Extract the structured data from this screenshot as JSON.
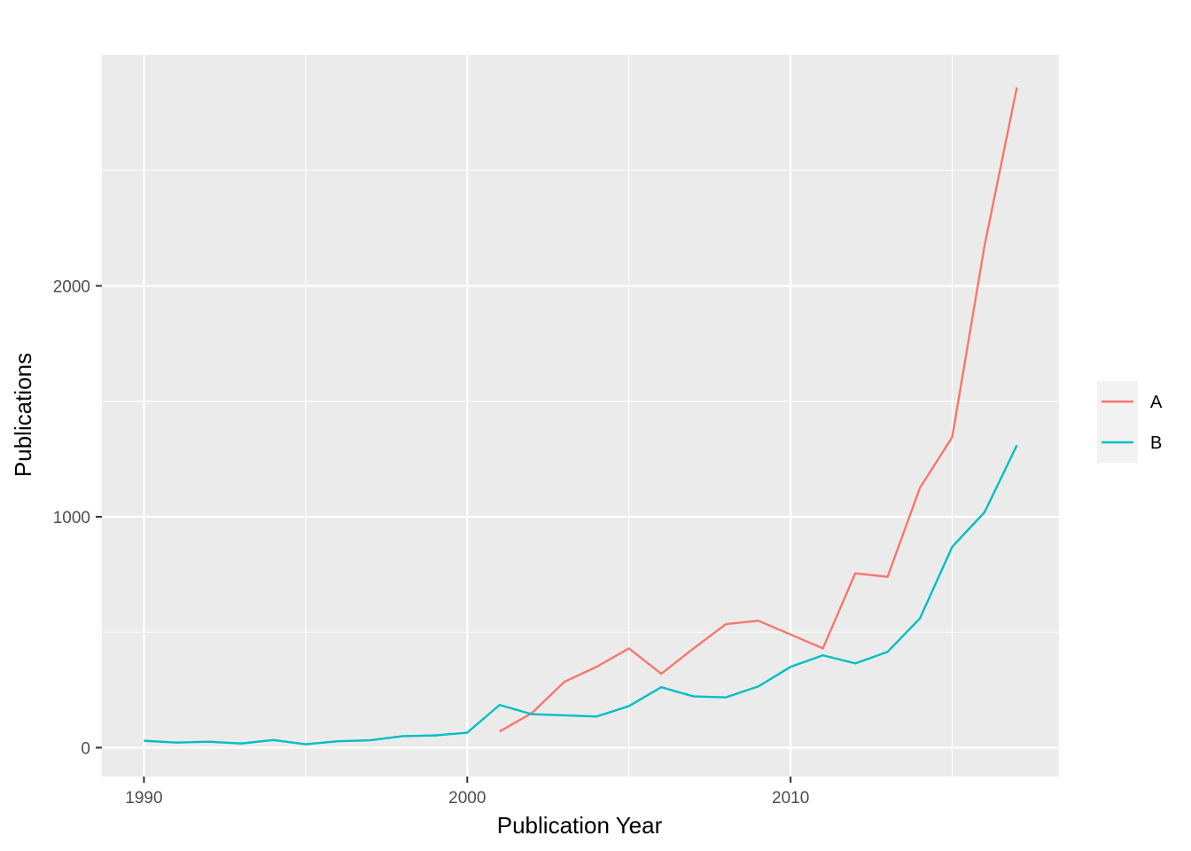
{
  "chart_data": {
    "type": "line",
    "xlabel": "Publication Year",
    "ylabel": "Publications",
    "xlim": [
      1988.7,
      2018.3
    ],
    "ylim": [
      -125,
      3000
    ],
    "x_ticks": [
      1990,
      2000,
      2010
    ],
    "y_ticks": [
      0,
      1000,
      2000
    ],
    "x_tick_labels": [
      "1990",
      "2000",
      "2010"
    ],
    "y_tick_labels": [
      "0",
      "1000",
      "2000"
    ],
    "grid": true,
    "legend_position": "right",
    "series": [
      {
        "name": "A",
        "color": "#F8766D",
        "x": [
          2001,
          2002,
          2003,
          2004,
          2005,
          2006,
          2007,
          2008,
          2009,
          2010,
          2011,
          2012,
          2013,
          2014,
          2015,
          2016,
          2017
        ],
        "values": [
          70,
          150,
          285,
          350,
          430,
          320,
          430,
          535,
          550,
          490,
          430,
          755,
          740,
          1125,
          1345,
          2175,
          2860
        ]
      },
      {
        "name": "B",
        "color": "#00BFC4",
        "x": [
          1990,
          1991,
          1992,
          1993,
          1994,
          1995,
          1996,
          1997,
          1998,
          1999,
          2000,
          2001,
          2002,
          2003,
          2004,
          2005,
          2006,
          2007,
          2008,
          2009,
          2010,
          2011,
          2012,
          2013,
          2014,
          2015,
          2016,
          2017
        ],
        "values": [
          30,
          22,
          26,
          18,
          33,
          15,
          28,
          32,
          50,
          53,
          65,
          185,
          145,
          140,
          135,
          180,
          262,
          222,
          218,
          265,
          350,
          400,
          365,
          415,
          560,
          870,
          1020,
          1310
        ]
      }
    ]
  }
}
